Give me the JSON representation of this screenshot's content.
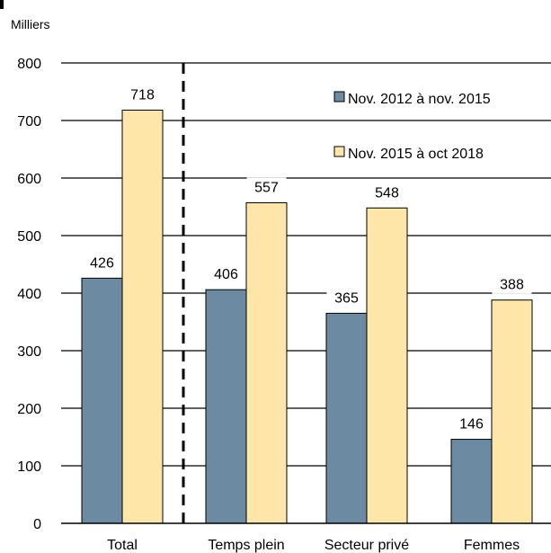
{
  "chart_data": {
    "type": "bar",
    "unit_label": "Milliers",
    "categories": [
      "Total",
      "Temps plein",
      "Secteur privé",
      "Femmes"
    ],
    "series": [
      {
        "name": "Nov. 2012 à nov. 2015",
        "values": [
          426,
          406,
          365,
          146
        ],
        "color": "#6d8aa3"
      },
      {
        "name": "Nov. 2015 à oct 2018",
        "values": [
          718,
          557,
          548,
          388
        ],
        "color": "#fde6a8"
      }
    ],
    "ylim": [
      0,
      800
    ],
    "yticks": [
      0,
      100,
      200,
      300,
      400,
      500,
      600,
      700,
      800
    ],
    "grid": true,
    "legend_position": "top-right",
    "separator_after_category": "Total"
  }
}
